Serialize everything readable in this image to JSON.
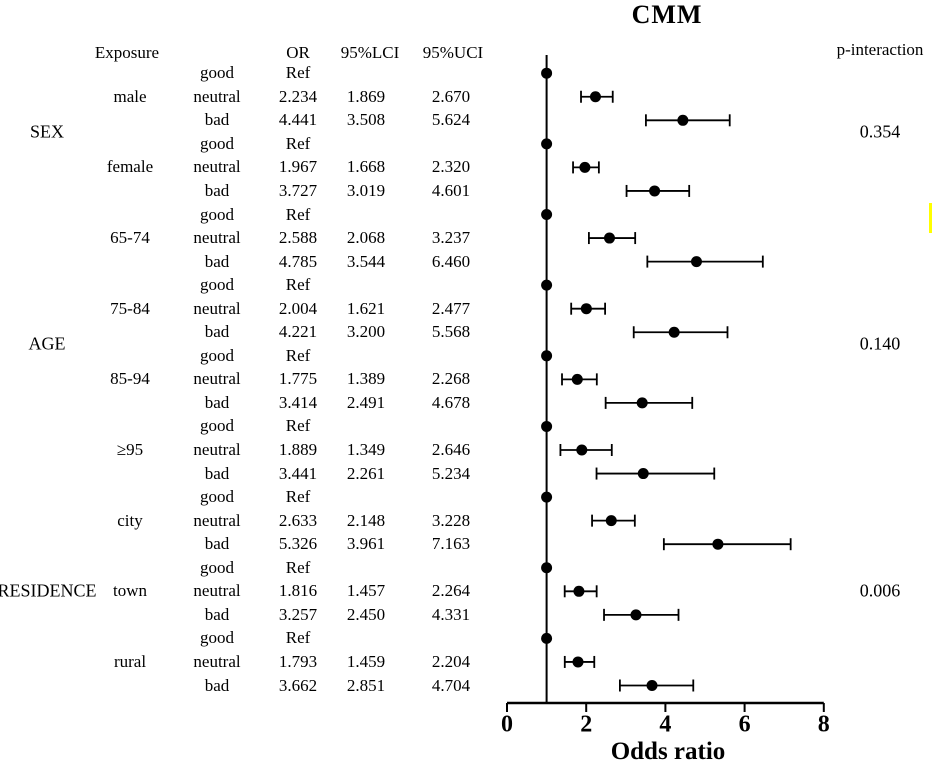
{
  "title": "CMM",
  "header": {
    "exposure": "Exposure",
    "or": "OR",
    "lci": "95%LCI",
    "uci": "95%UCI",
    "p_interaction": "p-interaction"
  },
  "ref_label": "Ref",
  "colors": {
    "marker": "#000000",
    "text": "#000000",
    "highlight_mark": "#ffff00"
  },
  "chart_data": {
    "type": "forest",
    "title": "CMM",
    "xlabel": "Odds ratio",
    "xlim": [
      0,
      8
    ],
    "x_ticks": [
      0,
      2,
      4,
      6,
      8
    ],
    "reference_line": 1.0,
    "legend": "none",
    "grid": false,
    "categories_per_subgroup": [
      "good",
      "neutral",
      "bad"
    ],
    "groups": [
      {
        "name": "SEX",
        "p_interaction": "0.354",
        "subgroups": [
          {
            "name": "male",
            "rows": [
              {
                "category": "good",
                "or": null,
                "lci": null,
                "uci": null
              },
              {
                "category": "neutral",
                "or": 2.234,
                "lci": 1.869,
                "uci": 2.67
              },
              {
                "category": "bad",
                "or": 4.441,
                "lci": 3.508,
                "uci": 5.624
              }
            ]
          },
          {
            "name": "female",
            "rows": [
              {
                "category": "good",
                "or": null,
                "lci": null,
                "uci": null
              },
              {
                "category": "neutral",
                "or": 1.967,
                "lci": 1.668,
                "uci": 2.32
              },
              {
                "category": "bad",
                "or": 3.727,
                "lci": 3.019,
                "uci": 4.601
              }
            ]
          }
        ]
      },
      {
        "name": "AGE",
        "p_interaction": "0.140",
        "subgroups": [
          {
            "name": "65-74",
            "rows": [
              {
                "category": "good",
                "or": null,
                "lci": null,
                "uci": null
              },
              {
                "category": "neutral",
                "or": 2.588,
                "lci": 2.068,
                "uci": 3.237
              },
              {
                "category": "bad",
                "or": 4.785,
                "lci": 3.544,
                "uci": 6.46
              }
            ]
          },
          {
            "name": "75-84",
            "rows": [
              {
                "category": "good",
                "or": null,
                "lci": null,
                "uci": null
              },
              {
                "category": "neutral",
                "or": 2.004,
                "lci": 1.621,
                "uci": 2.477
              },
              {
                "category": "bad",
                "or": 4.221,
                "lci": 3.2,
                "uci": 5.568
              }
            ]
          },
          {
            "name": "85-94",
            "rows": [
              {
                "category": "good",
                "or": null,
                "lci": null,
                "uci": null
              },
              {
                "category": "neutral",
                "or": 1.775,
                "lci": 1.389,
                "uci": 2.268
              },
              {
                "category": "bad",
                "or": 3.414,
                "lci": 2.491,
                "uci": 4.678
              }
            ]
          },
          {
            "name": "≥95",
            "rows": [
              {
                "category": "good",
                "or": null,
                "lci": null,
                "uci": null
              },
              {
                "category": "neutral",
                "or": 1.889,
                "lci": 1.349,
                "uci": 2.646
              },
              {
                "category": "bad",
                "or": 3.441,
                "lci": 2.261,
                "uci": 5.234
              }
            ]
          }
        ]
      },
      {
        "name": "RESIDENCE",
        "p_interaction": "0.006",
        "subgroups": [
          {
            "name": "city",
            "rows": [
              {
                "category": "good",
                "or": null,
                "lci": null,
                "uci": null
              },
              {
                "category": "neutral",
                "or": 2.633,
                "lci": 2.148,
                "uci": 3.228
              },
              {
                "category": "bad",
                "or": 5.326,
                "lci": 3.961,
                "uci": 7.163
              }
            ]
          },
          {
            "name": "town",
            "rows": [
              {
                "category": "good",
                "or": null,
                "lci": null,
                "uci": null
              },
              {
                "category": "neutral",
                "or": 1.816,
                "lci": 1.457,
                "uci": 2.264
              },
              {
                "category": "bad",
                "or": 3.257,
                "lci": 2.45,
                "uci": 4.331
              }
            ]
          },
          {
            "name": "rural",
            "rows": [
              {
                "category": "good",
                "or": null,
                "lci": null,
                "uci": null
              },
              {
                "category": "neutral",
                "or": 1.793,
                "lci": 1.459,
                "uci": 2.204
              },
              {
                "category": "bad",
                "or": 3.662,
                "lci": 2.851,
                "uci": 4.704
              }
            ]
          }
        ]
      }
    ]
  }
}
